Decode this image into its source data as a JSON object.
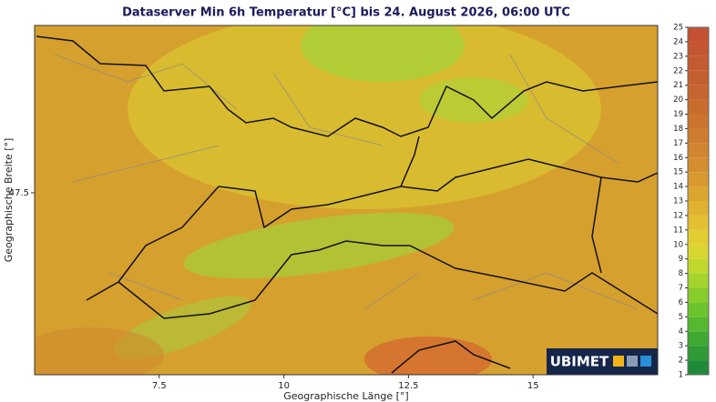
{
  "map": {
    "title": "Dataserver Min 6h Temperatur [°C] bis 24. August 2026, 06:00 UTC",
    "x_label": "Geographische Länge [°]",
    "y_label": "Geographische Breite [°]",
    "xlim": [
      5,
      17.5
    ],
    "ylim": [
      45,
      49.8
    ],
    "xticks": [
      7.5,
      10,
      12.5,
      15
    ],
    "yticks": [
      47.5
    ],
    "logo": "UBIMET"
  },
  "colorbar": {
    "ticks": [
      1,
      2,
      3,
      4,
      5,
      6,
      7,
      8,
      9,
      10,
      11,
      12,
      13,
      14,
      15,
      16,
      17,
      18,
      19,
      20,
      21,
      22,
      23,
      24,
      25
    ],
    "colors": [
      "#1f8a3a",
      "#2f9a36",
      "#3fa932",
      "#55b82e",
      "#6cc42c",
      "#86cd2c",
      "#a2d42d",
      "#c0d82e",
      "#d9d62f",
      "#e3cc30",
      "#e3c030",
      "#e0b230",
      "#dca52f",
      "#d8992e",
      "#d48e2e",
      "#d1852e",
      "#ce7c2e",
      "#cb742e",
      "#c86c2e",
      "#c6652f",
      "#c55f30",
      "#c45a31",
      "#c45532",
      "#c45133"
    ]
  }
}
